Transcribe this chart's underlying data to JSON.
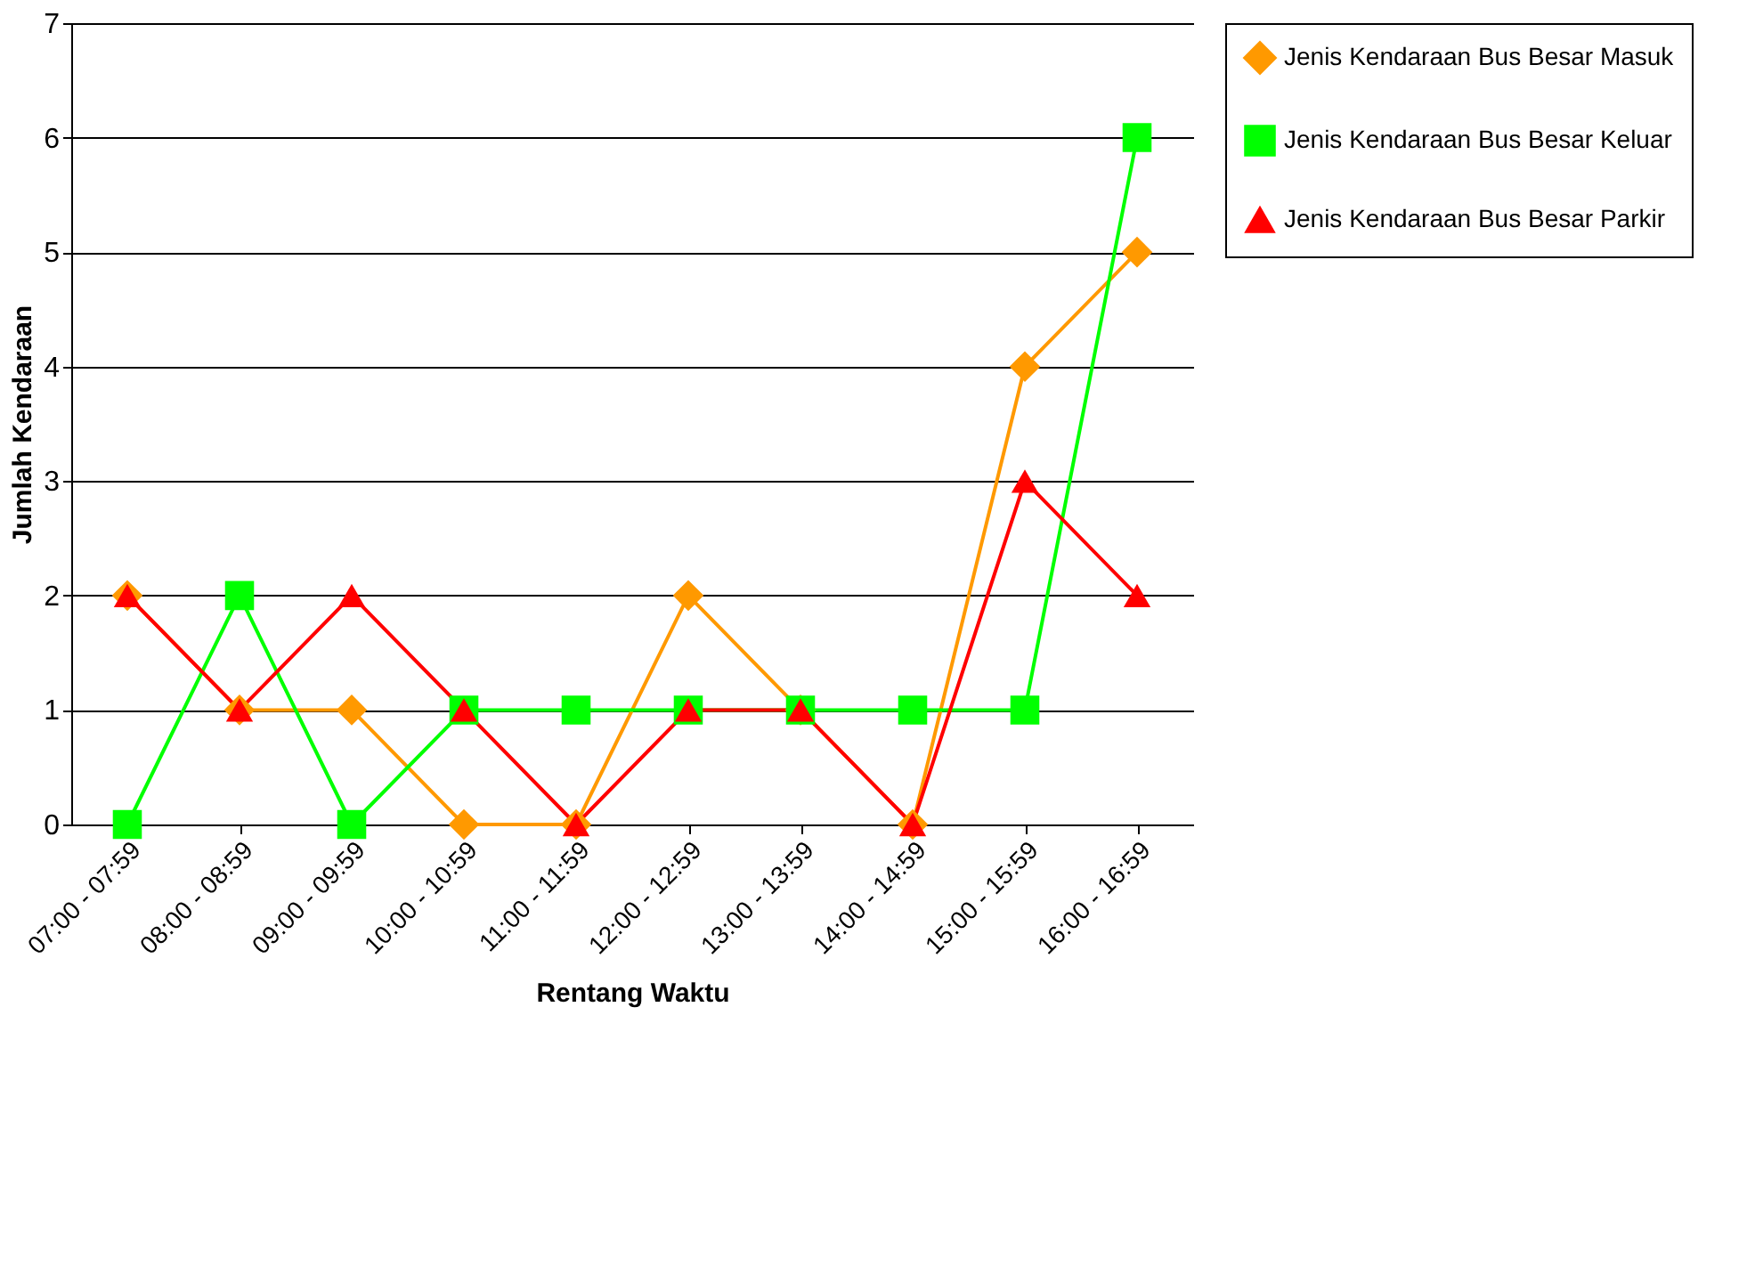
{
  "chart_data": {
    "type": "line",
    "xlabel": "Rentang Waktu",
    "ylabel": "Jumlah Kendaraan",
    "categories": [
      "07:00 - 07:59",
      "08:00 - 08:59",
      "09:00 - 09:59",
      "10:00 - 10:59",
      "11:00 - 11:59",
      "12:00 - 12:59",
      "13:00 - 13:59",
      "14:00 - 14:59",
      "15:00 - 15:59",
      "16:00 - 16:59"
    ],
    "series": [
      {
        "name": "Jenis Kendaraan Bus Besar Masuk",
        "color": "#ff9900",
        "marker": "diamond",
        "values": [
          2,
          1,
          1,
          0,
          0,
          2,
          1,
          0,
          4,
          5
        ]
      },
      {
        "name": "Jenis Kendaraan Bus Besar Keluar",
        "color": "#00ff00",
        "marker": "square",
        "values": [
          0,
          2,
          0,
          1,
          1,
          1,
          1,
          1,
          1,
          6
        ]
      },
      {
        "name": "Jenis Kendaraan Bus Besar Parkir",
        "color": "#ff0000",
        "marker": "triangle",
        "values": [
          2,
          1,
          2,
          1,
          0,
          1,
          1,
          0,
          3,
          2
        ]
      }
    ],
    "ylim": [
      0,
      7
    ],
    "yticks": [
      0,
      1,
      2,
      3,
      4,
      5,
      6,
      7
    ],
    "grid": "y",
    "legend": "right",
    "line_style": "solid"
  }
}
